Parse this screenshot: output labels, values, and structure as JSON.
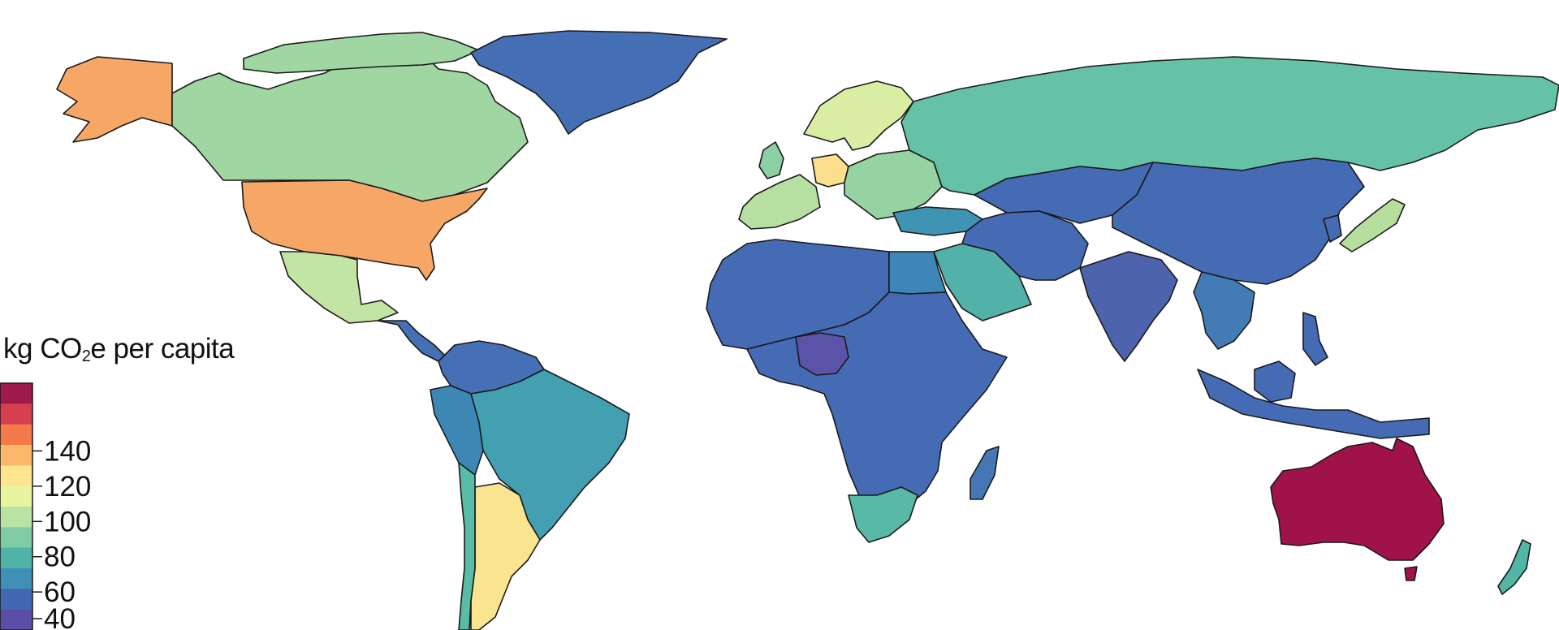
{
  "legend": {
    "title_prefix": "kg CO",
    "title_sub": "2",
    "title_suffix": "e per capita",
    "ticks": [
      {
        "value": 140,
        "label": "140"
      },
      {
        "value": 120,
        "label": "120"
      },
      {
        "value": 100,
        "label": "100"
      },
      {
        "value": 80,
        "label": "80"
      },
      {
        "value": 60,
        "label": "60"
      },
      {
        "value": 40,
        "label": "40"
      }
    ],
    "range": [
      20,
      160
    ],
    "colors": [
      "#9e1a4a",
      "#d6404e",
      "#f57a4b",
      "#fbb86a",
      "#fde68f",
      "#e8f4a0",
      "#b9e3a2",
      "#7fcca4",
      "#4fb3a8",
      "#3f8fb6",
      "#4467b3",
      "#5b4ea5"
    ]
  },
  "regions": [
    {
      "name": "alaska",
      "value": 110,
      "color": "#f7a765"
    },
    {
      "name": "canada",
      "value": 62,
      "color": "#a0d6a2"
    },
    {
      "name": "usa",
      "value": 110,
      "color": "#f7a765"
    },
    {
      "name": "mexico",
      "value": 62,
      "color": "#c2e4a4"
    },
    {
      "name": "central-america",
      "value": 30,
      "color": "#4670b6"
    },
    {
      "name": "greenland",
      "value": 25,
      "color": "#456fb5"
    },
    {
      "name": "colombia-venezuela",
      "value": 30,
      "color": "#4670b6"
    },
    {
      "name": "brazil",
      "value": 40,
      "color": "#42a0b0"
    },
    {
      "name": "peru",
      "value": 36,
      "color": "#3d87b5"
    },
    {
      "name": "argentina",
      "value": 85,
      "color": "#f9e58f"
    },
    {
      "name": "chile",
      "value": 45,
      "color": "#59bca6"
    },
    {
      "name": "russia",
      "value": 50,
      "color": "#65c2a7"
    },
    {
      "name": "scandinavia",
      "value": 62,
      "color": "#d9eea3"
    },
    {
      "name": "germany",
      "value": 90,
      "color": "#fcdf8c"
    },
    {
      "name": "uk",
      "value": 55,
      "color": "#8dd0a4"
    },
    {
      "name": "western-europe",
      "value": 60,
      "color": "#b7dfa1"
    },
    {
      "name": "eastern-europe",
      "value": 55,
      "color": "#96d3a3"
    },
    {
      "name": "turkey",
      "value": 38,
      "color": "#3f94b3"
    },
    {
      "name": "north-africa",
      "value": 28,
      "color": "#456bb4"
    },
    {
      "name": "egypt",
      "value": 35,
      "color": "#3e86b7"
    },
    {
      "name": "sub-saharan-africa",
      "value": 28,
      "color": "#456bb4"
    },
    {
      "name": "nigeria",
      "value": 22,
      "color": "#5a53a8"
    },
    {
      "name": "south-africa",
      "value": 45,
      "color": "#57b9a6"
    },
    {
      "name": "madagascar",
      "value": 30,
      "color": "#4577b7"
    },
    {
      "name": "middle-east",
      "value": 28,
      "color": "#456bb4"
    },
    {
      "name": "saudi-arabia",
      "value": 45,
      "color": "#52b1a8"
    },
    {
      "name": "india",
      "value": 26,
      "color": "#4d63ae"
    },
    {
      "name": "china",
      "value": 28,
      "color": "#456bb4"
    },
    {
      "name": "southeast-asia",
      "value": 32,
      "color": "#427bb5"
    },
    {
      "name": "indonesia",
      "value": 28,
      "color": "#456bb4"
    },
    {
      "name": "japan",
      "value": 60,
      "color": "#b6df9e"
    },
    {
      "name": "australia",
      "value": 150,
      "color": "#a0134a"
    },
    {
      "name": "new-zealand",
      "value": 45,
      "color": "#52b6a7"
    }
  ]
}
